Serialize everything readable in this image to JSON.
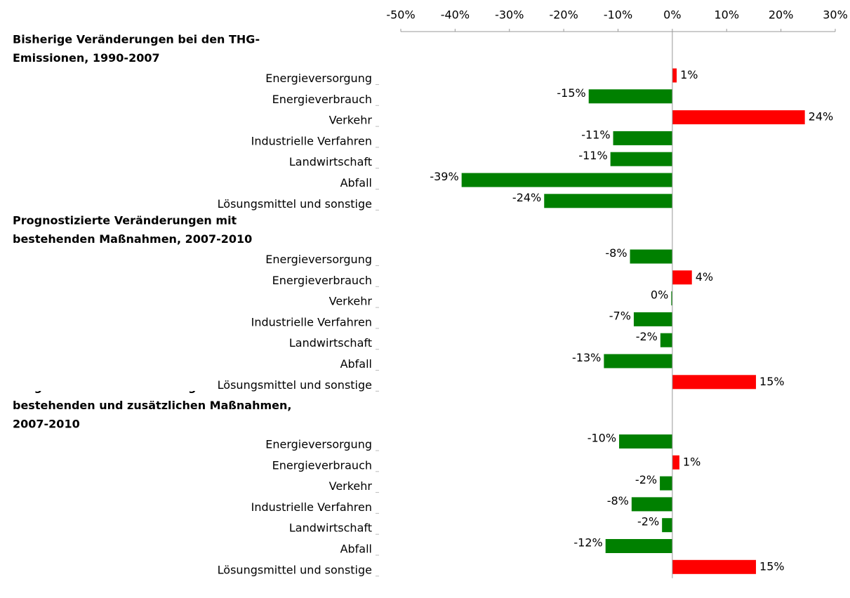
{
  "chart_data": {
    "type": "grouped-hbar",
    "xlim": [
      -50,
      30
    ],
    "xticks": [
      {
        "value": -50,
        "label": "-50%"
      },
      {
        "value": -40,
        "label": "-40%"
      },
      {
        "value": -30,
        "label": "-30%"
      },
      {
        "value": -20,
        "label": "-20%"
      },
      {
        "value": -10,
        "label": "-10%"
      },
      {
        "value": 0,
        "label": "0%"
      },
      {
        "value": 10,
        "label": "10%"
      },
      {
        "value": 20,
        "label": "20%"
      },
      {
        "value": 30,
        "label": "30%"
      }
    ],
    "positive_color": "#ff0000",
    "negative_color": "#008000",
    "groups": [
      {
        "title_lines": [
          "Bisherige Veränderungen bei den THG-",
          "Emissionen, 1990-2007"
        ],
        "categories": [
          "Energieversorgung",
          "Energieverbrauch",
          "Verkehr",
          "Industrielle Verfahren",
          "Landwirtschaft",
          "Abfall",
          "Lösungsmittel und sonstige"
        ],
        "values": [
          0.8,
          -15.4,
          24.4,
          -10.9,
          -11.4,
          -38.8,
          -23.6
        ],
        "value_labels": [
          "1%",
          "-15%",
          "24%",
          "-11%",
          "-11%",
          "-39%",
          "-24%"
        ]
      },
      {
        "title_lines": [
          "Prognostizierte Veränderungen mit",
          "bestehenden Maßnahmen, 2007-2010"
        ],
        "categories": [
          "Energieversorgung",
          "Energieverbrauch",
          "Verkehr",
          "Industrielle Verfahren",
          "Landwirtschaft",
          "Abfall",
          "Lösungsmittel und sonstige"
        ],
        "values": [
          -7.8,
          3.6,
          -0.2,
          -7.1,
          -2.2,
          -12.6,
          15.4
        ],
        "value_labels": [
          "-8%",
          "4%",
          "0%",
          "-7%",
          "-2%",
          "-13%",
          "15%"
        ]
      },
      {
        "title_lines": [
          "Prognostizierte Veränderungen mit",
          "bestehenden und zusätzlichen Maßnahmen,",
          "2007-2010"
        ],
        "categories": [
          "Energieversorgung",
          "Energieverbrauch",
          "Verkehr",
          "Industrielle Verfahren",
          "Landwirtschaft",
          "Abfall",
          "Lösungsmittel und sonstige"
        ],
        "values": [
          -9.8,
          1.3,
          -2.3,
          -7.5,
          -1.9,
          -12.3,
          15.4
        ],
        "value_labels": [
          "-10%",
          "1%",
          "-2%",
          "-8%",
          "-2%",
          "-12%",
          "15%"
        ]
      }
    ]
  }
}
